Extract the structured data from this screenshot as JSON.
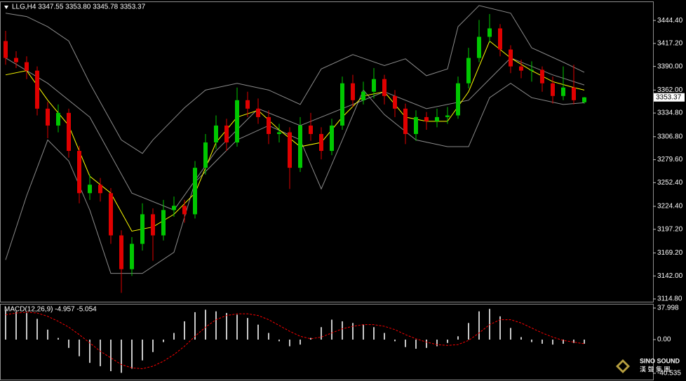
{
  "chart_data": [
    {
      "type": "candlestick",
      "title": "LLG,H4  3347.55 3353.80 3345.78 3353.37",
      "up_color": "#00c800",
      "down_color": "#e00000",
      "price_label": "3353.37",
      "open": [
        3420,
        3400,
        3395,
        3385,
        3340,
        3320,
        3335,
        3290,
        3240,
        3250,
        3240,
        3190,
        3150,
        3180,
        3215,
        3190,
        3220,
        3225,
        3215,
        3270,
        3300,
        3320,
        3300,
        3350,
        3340,
        3330,
        3310,
        3312,
        3270,
        3320,
        3310,
        3290,
        3320,
        3370,
        3350,
        3360,
        3375,
        3355,
        3340,
        3310,
        3330,
        3325,
        3330,
        3332,
        3370,
        3400,
        3425,
        3435,
        3410,
        3390,
        3385,
        3386,
        3370,
        3355,
        3365,
        3347.55
      ],
      "high": [
        3432,
        3408,
        3402,
        3390,
        3348,
        3345,
        3340,
        3296,
        3262,
        3258,
        3246,
        3196,
        3188,
        3228,
        3222,
        3232,
        3236,
        3232,
        3278,
        3310,
        3332,
        3328,
        3365,
        3360,
        3352,
        3338,
        3322,
        3318,
        3330,
        3335,
        3318,
        3328,
        3378,
        3380,
        3372,
        3388,
        3380,
        3362,
        3346,
        3338,
        3336,
        3340,
        3342,
        3378,
        3412,
        3445,
        3452,
        3440,
        3415,
        3398,
        3396,
        3390,
        3378,
        3390,
        3392,
        3353.8
      ],
      "low": [
        3392,
        3388,
        3375,
        3332,
        3305,
        3312,
        3282,
        3228,
        3232,
        3230,
        3180,
        3122,
        3142,
        3172,
        3160,
        3184,
        3212,
        3205,
        3210,
        3262,
        3292,
        3290,
        3295,
        3330,
        3322,
        3298,
        3300,
        3245,
        3265,
        3302,
        3280,
        3285,
        3315,
        3342,
        3345,
        3352,
        3345,
        3330,
        3298,
        3302,
        3315,
        3318,
        3322,
        3328,
        3364,
        3395,
        3418,
        3402,
        3382,
        3376,
        3372,
        3360,
        3346,
        3350,
        3345,
        3345.78
      ],
      "close": [
        3400,
        3395,
        3385,
        3340,
        3320,
        3335,
        3290,
        3240,
        3250,
        3240,
        3190,
        3150,
        3180,
        3215,
        3190,
        3220,
        3225,
        3215,
        3270,
        3300,
        3320,
        3300,
        3350,
        3340,
        3330,
        3310,
        3312,
        3270,
        3320,
        3310,
        3290,
        3320,
        3370,
        3350,
        3360,
        3375,
        3355,
        3340,
        3310,
        3330,
        3325,
        3330,
        3332,
        3370,
        3400,
        3425,
        3435,
        3410,
        3390,
        3385,
        3386,
        3370,
        3355,
        3365,
        3350,
        3353.37
      ],
      "lines": [
        {
          "color": "#8c8c8c",
          "x": [
            0,
            2,
            4,
            6,
            8,
            11,
            13,
            14,
            17,
            19,
            22,
            25,
            28,
            30,
            33,
            36,
            38,
            40,
            42,
            43,
            45,
            48,
            50,
            53,
            55
          ],
          "values": [
            3453,
            3449,
            3437,
            3420,
            3370,
            3303,
            3287,
            3303,
            3341,
            3362,
            3370,
            3362,
            3345,
            3387,
            3404,
            3391,
            3399,
            3379,
            3387,
            3437,
            3462,
            3453,
            3412,
            3395,
            3383
          ]
        },
        {
          "color": "#8c8c8c",
          "x": [
            0,
            2,
            4,
            6,
            8,
            10,
            13,
            16,
            18,
            20,
            22,
            25,
            28,
            30,
            32,
            34,
            36,
            39,
            42,
            44,
            46,
            48,
            50,
            53,
            55
          ],
          "values": [
            3161,
            3237,
            3303,
            3278,
            3220,
            3145,
            3145,
            3170,
            3253,
            3278,
            3303,
            3320,
            3303,
            3245,
            3303,
            3362,
            3333,
            3303,
            3295,
            3295,
            3353,
            3370,
            3353,
            3345,
            3347
          ]
        },
        {
          "color": "#8c8c8c",
          "x": [
            0,
            4,
            8,
            12,
            16,
            20,
            24,
            28,
            32,
            36,
            40,
            44,
            48,
            52,
            55
          ],
          "values": [
            3400,
            3370,
            3330,
            3240,
            3220,
            3290,
            3340,
            3320,
            3340,
            3360,
            3340,
            3350,
            3400,
            3380,
            3368
          ]
        },
        {
          "color": "#ffff00",
          "x": [
            0,
            2,
            4,
            6,
            8,
            10,
            12,
            14,
            16,
            18,
            20,
            22,
            24,
            26,
            28,
            30,
            32,
            34,
            36,
            38,
            40,
            42,
            44,
            46,
            48,
            50,
            52,
            54,
            55
          ],
          "values": [
            3380,
            3385,
            3350,
            3320,
            3260,
            3240,
            3195,
            3200,
            3215,
            3240,
            3300,
            3330,
            3338,
            3315,
            3295,
            3300,
            3330,
            3355,
            3360,
            3330,
            3325,
            3325,
            3360,
            3420,
            3400,
            3385,
            3372,
            3365,
            3362
          ]
        }
      ],
      "ylim": [
        3111.5,
        3466.1
      ],
      "yticks": [
        {
          "value": 3444.4,
          "label": "3444.40"
        },
        {
          "value": 3417.2,
          "label": "3417.20"
        },
        {
          "value": 3390,
          "label": "3390.00"
        },
        {
          "value": 3362,
          "label": "3362.00"
        },
        {
          "value": 3334.8,
          "label": "3334.80"
        },
        {
          "value": 3306.8,
          "label": "3306.80"
        },
        {
          "value": 3279.6,
          "label": "3279.60"
        },
        {
          "value": 3252.4,
          "label": "3252.40"
        },
        {
          "value": 3224.4,
          "label": "3224.40"
        },
        {
          "value": 3197.2,
          "label": "3197.20"
        },
        {
          "value": 3169.2,
          "label": "3169.20"
        },
        {
          "value": 3142,
          "label": "3142.00"
        },
        {
          "value": 3114.8,
          "label": "3114.80"
        }
      ]
    },
    {
      "type": "macd",
      "title": "MACD(12,26,9) -4.957 -5.054",
      "hist_color": "#c8c8c8",
      "signal_color": "#ff0000",
      "values": [
        36,
        34,
        32,
        25,
        12,
        2,
        -10,
        -20,
        -28,
        -32,
        -38,
        -40,
        -35,
        -25,
        -15,
        -3,
        8,
        22,
        33,
        36,
        34,
        32,
        30,
        26,
        18,
        8,
        -2,
        -8,
        -6,
        2,
        15,
        24,
        22,
        20,
        18,
        15,
        8,
        -2,
        -9,
        -11,
        -10,
        -8,
        -4,
        4,
        20,
        34,
        37,
        28,
        14,
        3,
        -3,
        -5,
        -6,
        -5,
        -4,
        -4.957
      ],
      "signal": [
        30,
        32,
        33,
        32,
        28,
        22,
        15,
        6,
        -4,
        -14,
        -22,
        -30,
        -34,
        -35,
        -32,
        -26,
        -18,
        -8,
        4,
        15,
        24,
        29,
        31,
        31,
        29,
        24,
        17,
        10,
        4,
        1,
        3,
        8,
        13,
        16,
        18,
        18,
        16,
        12,
        6,
        1,
        -3,
        -6,
        -7,
        -6,
        -1,
        8,
        18,
        24,
        24,
        20,
        14,
        8,
        3,
        -1,
        -3,
        -5.054
      ],
      "ylim": [
        -47.29,
        43.07
      ],
      "yticks": [
        37.998,
        {
          "value": 0,
          "label": "0.00"
        },
        -40.535
      ]
    }
  ],
  "watermark": {
    "brand": "SINO SOUND",
    "chinese": "漢 聲 集 團"
  }
}
